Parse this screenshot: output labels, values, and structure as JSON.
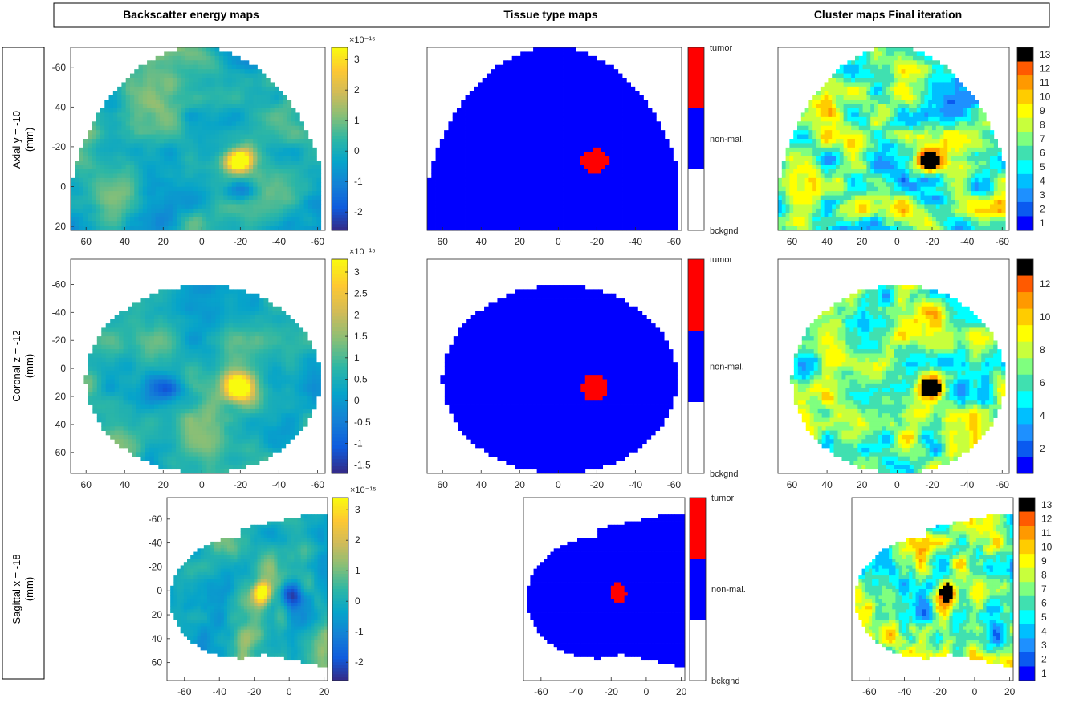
{
  "headers": {
    "col1": "Backscatter energy maps",
    "col2": "Tissue type maps",
    "col3": "Cluster maps Final iteration"
  },
  "rows": [
    {
      "label_line1": "Axial y = -10",
      "label_line2": "(mm)"
    },
    {
      "label_line1": "Coronal z = -12",
      "label_line2": "(mm)"
    },
    {
      "label_line1": "Sagittal x = -18",
      "label_line2": "(mm)"
    }
  ],
  "colors": {
    "tumor": "#ff0000",
    "non_malignant": "#0000ff",
    "background": "#ffffff",
    "parula": [
      "#352a87",
      "#0f5cdd",
      "#1481d6",
      "#06a4ca",
      "#2eb7a4",
      "#87bf77",
      "#d1bb59",
      "#fec832",
      "#f9fb0e"
    ],
    "cluster_palette": [
      "#ffffff",
      "#0000ff",
      "#0a5af0",
      "#1e90ff",
      "#00bfff",
      "#00ffff",
      "#40e0b0",
      "#7fff7f",
      "#c8ff3c",
      "#ffff00",
      "#ffcc00",
      "#ff9900",
      "#ff5a00",
      "#000000"
    ]
  },
  "chart_data": [
    {
      "id": "axial-energy",
      "type": "heatmap",
      "row": 0,
      "col": 0,
      "title": "",
      "colormap": "parula",
      "x_ticks": [
        60,
        40,
        20,
        0,
        -20,
        -40,
        -60
      ],
      "x_reversed": true,
      "xlim": [
        68,
        -64
      ],
      "y_ticks": [
        -60,
        -40,
        -20,
        0,
        20
      ],
      "ylim": [
        -70,
        22
      ],
      "colorbar": {
        "ticks": [
          3,
          2,
          1,
          0,
          -1,
          -2
        ],
        "range": [
          -2.6,
          3.4
        ],
        "exponent": "×10⁻¹⁵"
      },
      "features": [
        {
          "x": -17,
          "y": -11,
          "value": 3.4
        },
        {
          "x": -20,
          "y": 6,
          "value": -2.5
        }
      ]
    },
    {
      "id": "axial-tissue",
      "type": "heatmap",
      "row": 0,
      "col": 1,
      "colormap": "tissue",
      "x_ticks": [
        60,
        40,
        20,
        0,
        -20,
        -40,
        -60
      ],
      "xlim": [
        68,
        -64
      ],
      "colorbar_labels": [
        "tumor",
        "non-mal.",
        "bckgnd"
      ]
    },
    {
      "id": "axial-cluster",
      "type": "heatmap",
      "row": 0,
      "col": 2,
      "colormap": "cluster",
      "x_ticks": [
        60,
        40,
        20,
        0,
        -20,
        -40,
        -60
      ],
      "xlim": [
        68,
        -64
      ],
      "colorbar": {
        "ticks": [
          13,
          12,
          11,
          10,
          9,
          8,
          7,
          6,
          5,
          4,
          3,
          2,
          1
        ],
        "range": [
          1,
          13
        ]
      }
    },
    {
      "id": "coronal-energy",
      "type": "heatmap",
      "row": 1,
      "col": 0,
      "colormap": "parula",
      "x_ticks": [
        60,
        40,
        20,
        0,
        -20,
        -40,
        -60
      ],
      "xlim": [
        68,
        -64
      ],
      "y_ticks": [
        -60,
        -40,
        -20,
        0,
        20,
        40,
        60
      ],
      "ylim": [
        -78,
        75
      ],
      "colorbar": {
        "ticks": [
          3,
          2.5,
          2,
          1.5,
          1,
          0.5,
          0,
          -0.5,
          -1,
          -1.5
        ],
        "range": [
          -1.7,
          3.3
        ],
        "exponent": "×10⁻¹⁵"
      },
      "features": [
        {
          "x": -18,
          "y": 9,
          "value": 3.2
        }
      ]
    },
    {
      "id": "coronal-tissue",
      "type": "heatmap",
      "row": 1,
      "col": 1,
      "colormap": "tissue",
      "x_ticks": [
        60,
        40,
        20,
        0,
        -20,
        -40,
        -60
      ],
      "xlim": [
        68,
        -64
      ],
      "colorbar_labels": [
        "tumor",
        "non-mal.",
        "bckgnd"
      ]
    },
    {
      "id": "coronal-cluster",
      "type": "heatmap",
      "row": 1,
      "col": 2,
      "colormap": "cluster",
      "x_ticks": [
        60,
        40,
        20,
        0,
        -20,
        -40,
        -60
      ],
      "xlim": [
        68,
        -64
      ],
      "colorbar": {
        "ticks": [
          12,
          10,
          8,
          6,
          4,
          2
        ],
        "range": [
          1,
          13
        ]
      }
    },
    {
      "id": "sagittal-energy",
      "type": "heatmap",
      "row": 2,
      "col": 0,
      "colormap": "parula",
      "x_ticks": [
        -60,
        -40,
        -20,
        0,
        20
      ],
      "xlim": [
        -70,
        22
      ],
      "y_ticks": [
        -60,
        -40,
        -20,
        0,
        20,
        40,
        60
      ],
      "ylim": [
        -78,
        75
      ],
      "colorbar": {
        "ticks": [
          3,
          2,
          1,
          0,
          -1,
          -2
        ],
        "range": [
          -2.6,
          3.4
        ],
        "exponent": "×10⁻¹⁵"
      },
      "features": [
        {
          "x": -12,
          "y": 8,
          "value": 3.3
        }
      ]
    },
    {
      "id": "sagittal-tissue",
      "type": "heatmap",
      "row": 2,
      "col": 1,
      "colormap": "tissue",
      "x_ticks": [
        -60,
        -40,
        -20,
        0,
        20
      ],
      "xlim": [
        -70,
        22
      ],
      "colorbar_labels": [
        "tumor",
        "non-mal.",
        "bckgnd"
      ]
    },
    {
      "id": "sagittal-cluster",
      "type": "heatmap",
      "row": 2,
      "col": 2,
      "colormap": "cluster",
      "x_ticks": [
        -60,
        -40,
        -20,
        0,
        20
      ],
      "xlim": [
        -70,
        22
      ],
      "colorbar": {
        "ticks": [
          13,
          12,
          11,
          10,
          9,
          8,
          7,
          6,
          5,
          4,
          3,
          2,
          1
        ],
        "range": [
          1,
          13
        ]
      }
    }
  ]
}
